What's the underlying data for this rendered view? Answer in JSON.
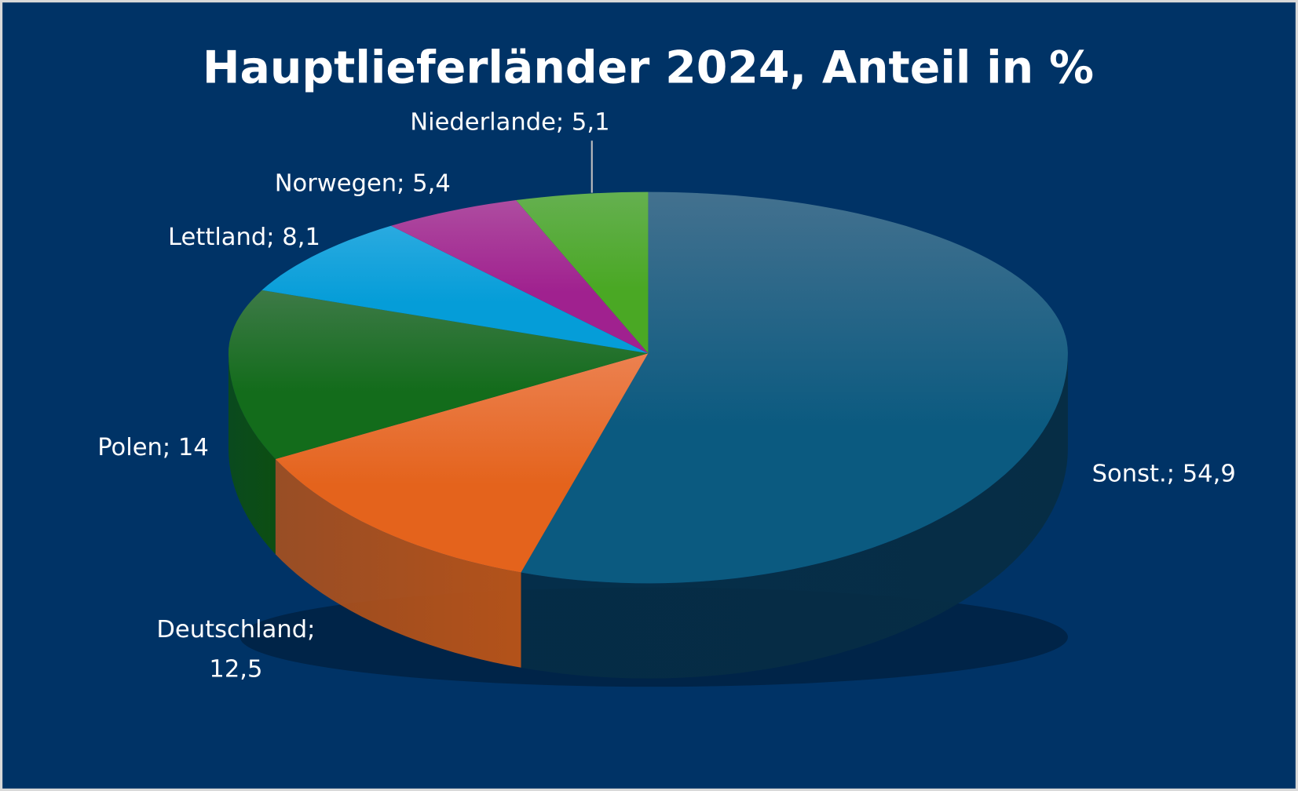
{
  "chart_data": {
    "type": "pie",
    "title": "Hauptlieferländer 2024, Anteil in %",
    "slices": [
      {
        "label": "Sonst.",
        "value": 54.9,
        "display": "Sonst.; 54,9",
        "color": "#0b5a80",
        "top_color": "#43718f",
        "side_color": "#062d45"
      },
      {
        "label": "Deutschland",
        "value": 12.5,
        "display_line1": "Deutschland;",
        "display_line2": "12,5",
        "color": "#e4631c",
        "top_color": "#ec8150",
        "side_color": "#b3521a"
      },
      {
        "label": "Polen",
        "value": 14,
        "display": "Polen; 14",
        "color": "#136c1b",
        "top_color": "#3d7a47",
        "side_color": "#0c4e12"
      },
      {
        "label": "Lettland",
        "value": 8.1,
        "display": "Lettland; 8,1",
        "color": "#059dd8",
        "top_color": "#2aaae0",
        "side_color": "#04739f"
      },
      {
        "label": "Norwegen",
        "value": 5.4,
        "display": "Norwegen; 5,4",
        "color": "#a0218f",
        "top_color": "#ae4ca0",
        "side_color": "#741868"
      },
      {
        "label": "Niederlande",
        "value": 5.1,
        "display": "Niederlande; 5,1",
        "color": "#4aa824",
        "top_color": "#65b050",
        "side_color": "#347a1a"
      }
    ],
    "background": "#003366",
    "legend": "none",
    "style": "3d-pie"
  }
}
